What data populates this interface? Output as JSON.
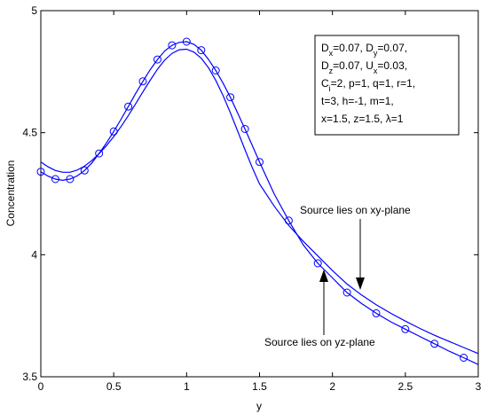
{
  "chart_data": {
    "type": "line",
    "title": "",
    "xlabel": "y",
    "ylabel": "Concentration",
    "xlim": [
      0,
      3
    ],
    "ylim": [
      3.5,
      5
    ],
    "xticks": [
      0,
      0.5,
      1,
      1.5,
      2,
      2.5,
      3
    ],
    "xtick_labels": [
      "0",
      "0.5",
      "1",
      "1.5",
      "2",
      "2.5",
      "3"
    ],
    "yticks": [
      3.5,
      4,
      4.5,
      5
    ],
    "ytick_labels": [
      "3.5",
      "4",
      "4.5",
      "5"
    ],
    "grid": false,
    "line_color": "#0000ff",
    "parameters_box": {
      "placement": "top-right",
      "lines": [
        [
          {
            "t": "D"
          },
          {
            "t": "x",
            "sub": true
          },
          {
            "t": "=0.07, D"
          },
          {
            "t": "y",
            "sub": true
          },
          {
            "t": "=0.07,"
          }
        ],
        [
          {
            "t": "D"
          },
          {
            "t": "z",
            "sub": true
          },
          {
            "t": "=0.07, U"
          },
          {
            "t": "x",
            "sub": true
          },
          {
            "t": "=0.03,"
          }
        ],
        [
          {
            "t": "C"
          },
          {
            "t": "i",
            "sub": true
          },
          {
            "t": "=2, p=1, q=1, r=1,"
          }
        ],
        [
          {
            "t": " t=3, h=-1, m=1,"
          }
        ],
        [
          {
            "t": "x=1.5,  z=1.5, λ=1"
          }
        ]
      ]
    },
    "annotations": [
      {
        "text": "Source lies on xy-plane",
        "arrow_to": [
          2.18,
          3.84
        ]
      },
      {
        "text": "Source lies on yz-plane",
        "arrow_to": [
          1.95,
          3.93
        ]
      }
    ],
    "series": [
      {
        "marker": "none",
        "x": [
          0,
          0.05,
          0.1,
          0.15,
          0.2,
          0.25,
          0.3,
          0.35,
          0.4,
          0.45,
          0.5,
          0.55,
          0.6,
          0.65,
          0.7,
          0.75,
          0.8,
          0.85,
          0.9,
          0.95,
          1.0,
          1.05,
          1.1,
          1.15,
          1.2,
          1.25,
          1.3,
          1.35,
          1.4,
          1.45,
          1.5,
          1.6,
          1.7,
          1.8,
          1.9,
          2.0,
          2.1,
          2.2,
          2.3,
          2.4,
          2.5,
          2.6,
          2.7,
          2.8,
          2.9,
          3.0
        ],
        "y": [
          4.38,
          4.36,
          4.345,
          4.338,
          4.338,
          4.347,
          4.363,
          4.386,
          4.414,
          4.447,
          4.484,
          4.525,
          4.57,
          4.618,
          4.667,
          4.715,
          4.76,
          4.798,
          4.825,
          4.84,
          4.842,
          4.83,
          4.805,
          4.766,
          4.714,
          4.652,
          4.582,
          4.506,
          4.43,
          4.357,
          4.29,
          4.2,
          4.12,
          4.055,
          3.995,
          3.935,
          3.88,
          3.835,
          3.795,
          3.76,
          3.728,
          3.698,
          3.67,
          3.645,
          3.62,
          3.595
        ]
      },
      {
        "marker": "circle",
        "x": [
          0,
          0.05,
          0.1,
          0.15,
          0.2,
          0.25,
          0.3,
          0.35,
          0.4,
          0.45,
          0.5,
          0.55,
          0.6,
          0.65,
          0.7,
          0.75,
          0.8,
          0.85,
          0.9,
          0.95,
          1.0,
          1.05,
          1.1,
          1.15,
          1.2,
          1.25,
          1.3,
          1.35,
          1.4,
          1.45,
          1.5,
          1.6,
          1.7,
          1.8,
          1.9,
          2.0,
          2.1,
          2.2,
          2.3,
          2.4,
          2.5,
          2.6,
          2.7,
          2.8,
          2.9,
          3.0
        ],
        "y": [
          4.34,
          4.322,
          4.31,
          4.305,
          4.31,
          4.323,
          4.345,
          4.376,
          4.415,
          4.458,
          4.505,
          4.555,
          4.607,
          4.66,
          4.71,
          4.758,
          4.8,
          4.835,
          4.858,
          4.87,
          4.873,
          4.862,
          4.838,
          4.8,
          4.755,
          4.703,
          4.645,
          4.58,
          4.515,
          4.448,
          4.38,
          4.25,
          4.14,
          4.04,
          3.965,
          3.905,
          3.845,
          3.8,
          3.76,
          3.725,
          3.695,
          3.665,
          3.635,
          3.605,
          3.578,
          3.55
        ],
        "marker_every": 2
      }
    ]
  }
}
